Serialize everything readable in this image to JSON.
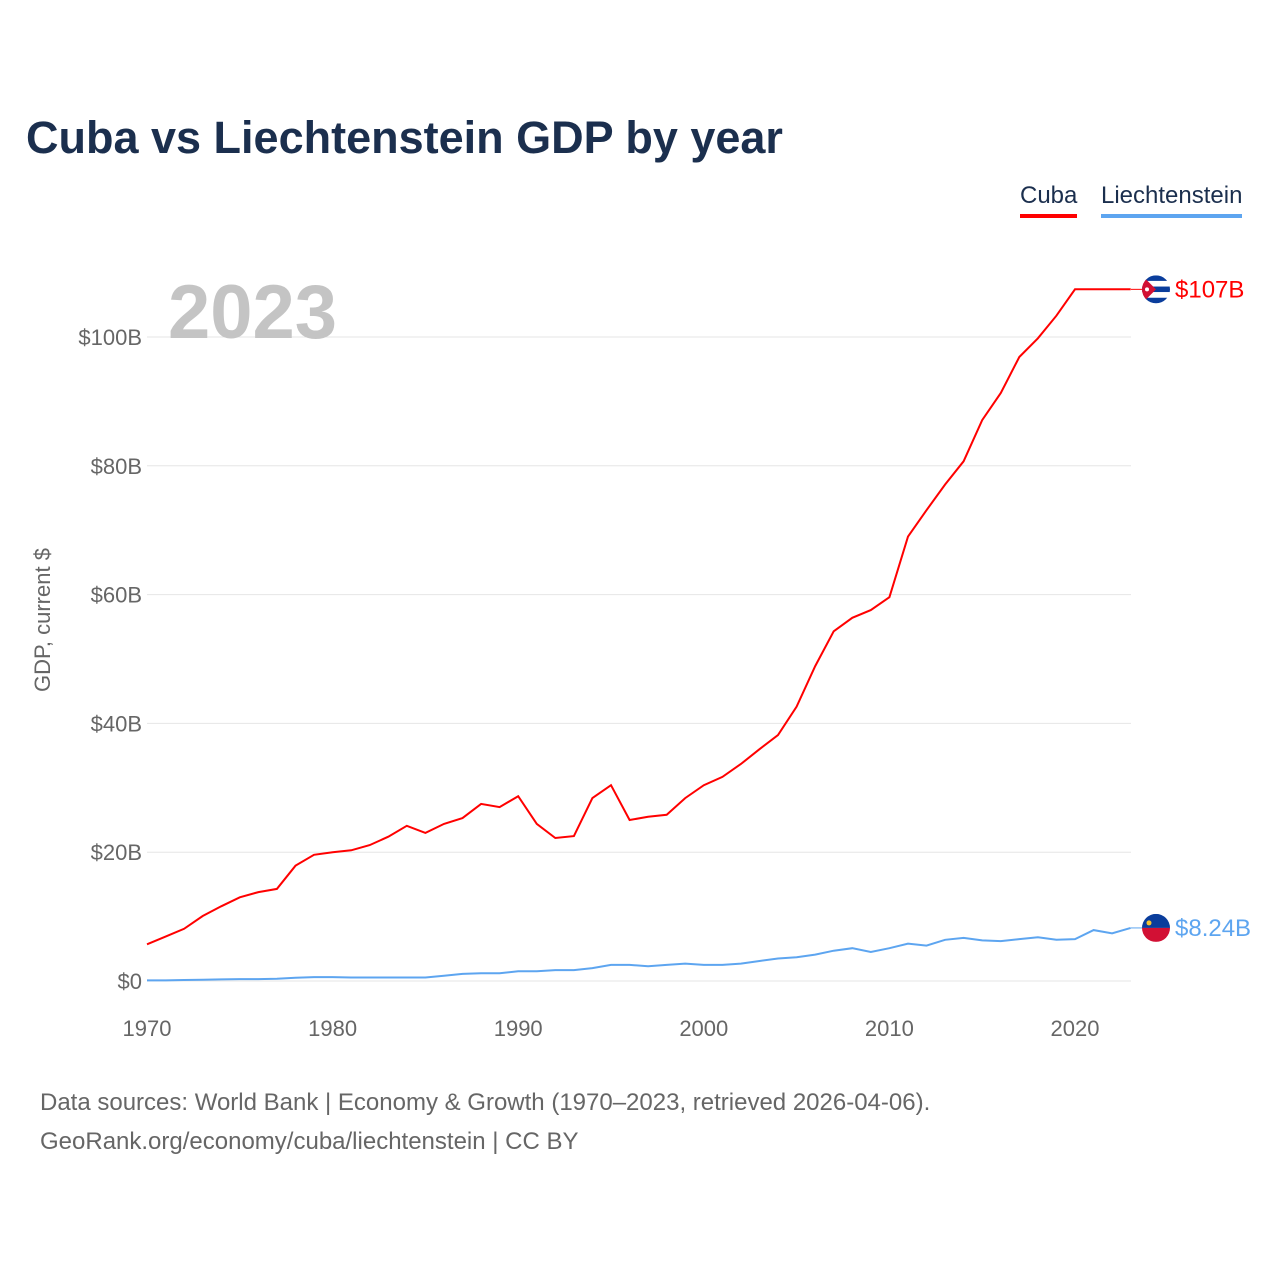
{
  "title": "Cuba vs Liechtenstein GDP by year",
  "legend": [
    {
      "label": "Cuba",
      "color": "#ff0000"
    },
    {
      "label": "Liechtenstein",
      "color": "#5da5f0"
    }
  ],
  "footer": {
    "line1": "Data sources: World Bank | Economy & Growth (1970–2023, retrieved 2026-04-06).",
    "line2": "GeoRank.org/economy/cuba/liechtenstein | CC BY"
  },
  "chart_data": {
    "type": "line",
    "title": "Cuba vs Liechtenstein GDP by year",
    "year_label": "2023",
    "xlabel": "",
    "ylabel": "GDP, current $",
    "xlim": [
      1970,
      2023
    ],
    "ylim": [
      0,
      110
    ],
    "x_ticks": [
      1970,
      1980,
      1990,
      2000,
      2010,
      2020
    ],
    "y_ticks": [
      0,
      20,
      40,
      60,
      80,
      100
    ],
    "y_tick_labels": [
      "$0",
      "$20B",
      "$40B",
      "$60B",
      "$80B",
      "$100B"
    ],
    "grid": true,
    "legend_position": "top-right",
    "x": [
      1970,
      1971,
      1972,
      1973,
      1974,
      1975,
      1976,
      1977,
      1978,
      1979,
      1980,
      1981,
      1982,
      1983,
      1984,
      1985,
      1986,
      1987,
      1988,
      1989,
      1990,
      1991,
      1992,
      1993,
      1994,
      1995,
      1996,
      1997,
      1998,
      1999,
      2000,
      2001,
      2002,
      2003,
      2004,
      2005,
      2006,
      2007,
      2008,
      2009,
      2010,
      2011,
      2012,
      2013,
      2014,
      2015,
      2016,
      2017,
      2018,
      2019,
      2020,
      2021,
      2022,
      2023
    ],
    "series": [
      {
        "name": "Cuba",
        "color": "#ff0000",
        "end_label": "$107B",
        "values": [
          5.7,
          6.9,
          8.1,
          10.1,
          11.6,
          13.0,
          13.8,
          14.3,
          17.9,
          19.6,
          20.0,
          20.3,
          21.1,
          22.4,
          24.1,
          23.0,
          24.4,
          25.3,
          27.5,
          27.0,
          28.7,
          24.4,
          22.2,
          22.5,
          28.4,
          30.4,
          25.0,
          25.5,
          25.8,
          28.4,
          30.4,
          31.7,
          33.7,
          36.0,
          38.2,
          42.6,
          48.9,
          54.3,
          56.4,
          57.6,
          59.6,
          69.0,
          73.1,
          77.1,
          80.7,
          87.1,
          91.3,
          96.9,
          99.8,
          103.3,
          107.4,
          107.4,
          107.4,
          107.4
        ]
      },
      {
        "name": "Liechtenstein",
        "color": "#5da5f0",
        "end_label": "$8.24B",
        "values": [
          0.1,
          0.1,
          0.15,
          0.2,
          0.25,
          0.3,
          0.3,
          0.35,
          0.5,
          0.6,
          0.6,
          0.55,
          0.55,
          0.55,
          0.55,
          0.55,
          0.8,
          1.1,
          1.2,
          1.2,
          1.5,
          1.5,
          1.7,
          1.7,
          2.0,
          2.5,
          2.5,
          2.3,
          2.5,
          2.7,
          2.5,
          2.5,
          2.7,
          3.1,
          3.5,
          3.7,
          4.1,
          4.7,
          5.1,
          4.5,
          5.1,
          5.8,
          5.5,
          6.4,
          6.7,
          6.3,
          6.2,
          6.5,
          6.8,
          6.4,
          6.5,
          7.9,
          7.4,
          8.24
        ]
      }
    ]
  }
}
